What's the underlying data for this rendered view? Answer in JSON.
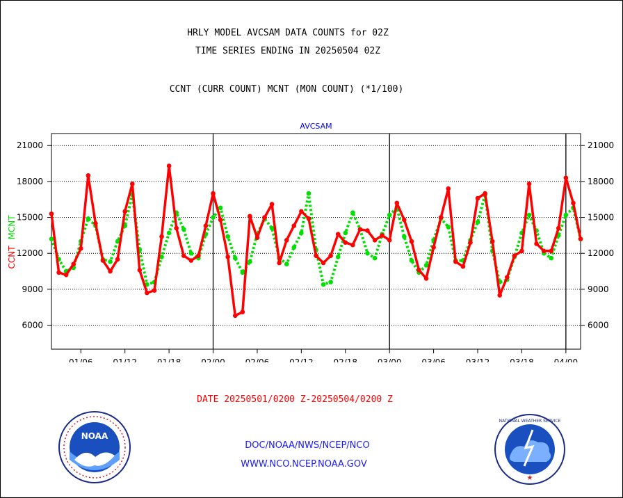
{
  "header": {
    "title_line1": "HRLY MODEL AVCSAM DATA COUNTS for 02Z",
    "title_line2": "TIME SERIES ENDING IN 20250504 02Z",
    "subtitle": "CCNT (CURR COUNT) MCNT (MON COUNT) (*1/100)"
  },
  "footer": {
    "date_range": "DATE 20250501/0200 Z-20250504/0200 Z",
    "link1": "DOC/NOAA/NWS/NCEP/NCO",
    "link2": "WWW.NCO.NCEP.NOAA.GOV"
  },
  "logos": {
    "noaa_text": "NOAA",
    "nws_text": "NATIONAL WEATHER SERVICE"
  },
  "chart_data": {
    "type": "line",
    "title": "AVCSAM",
    "ylabel_left_1": "CCNT",
    "ylabel_left_2": "MCNT",
    "ylim": [
      4000,
      22000
    ],
    "yticks": [
      6000,
      9000,
      12000,
      15000,
      18000,
      21000
    ],
    "ytick_labels": [
      "6000",
      "9000",
      "12000",
      "15000",
      "18000",
      "21000"
    ],
    "grid": true,
    "x_range": [
      0,
      72
    ],
    "xticks": [
      {
        "x": 4,
        "label": "01/06"
      },
      {
        "x": 10,
        "label": "01/12"
      },
      {
        "x": 16,
        "label": "01/18"
      },
      {
        "x": 22,
        "label": "02/00"
      },
      {
        "x": 28,
        "label": "02/06"
      },
      {
        "x": 34,
        "label": "02/12"
      },
      {
        "x": 40,
        "label": "02/18"
      },
      {
        "x": 46,
        "label": "03/00"
      },
      {
        "x": 52,
        "label": "03/06"
      },
      {
        "x": 58,
        "label": "03/12"
      },
      {
        "x": 64,
        "label": "03/18"
      },
      {
        "x": 70,
        "label": "04/00"
      }
    ],
    "day_boundaries": [
      22,
      46,
      70
    ],
    "colors": {
      "ccnt": "#ff0000",
      "mcnt": "#00e000",
      "title": "#0000ff"
    },
    "series": [
      {
        "name": "CCNT",
        "style": "solid",
        "values": [
          15300,
          10400,
          10200,
          11100,
          12400,
          18500,
          14500,
          11400,
          10500,
          11500,
          15500,
          17800,
          10600,
          8700,
          8900,
          13400,
          19300,
          14100,
          11800,
          11400,
          11800,
          14300,
          17000,
          14800,
          11700,
          6800,
          7100,
          15100,
          13300,
          15000,
          16100,
          11200,
          13100,
          14300,
          15500,
          14900,
          11800,
          11200,
          11800,
          13600,
          12900,
          12700,
          14000,
          13900,
          13100,
          13500,
          13100,
          16200,
          14800,
          13000,
          10600,
          9900,
          12500,
          15000,
          17400,
          11300,
          10900,
          12900,
          16600,
          17000,
          13000,
          8500,
          10000,
          11800,
          12200,
          17800,
          12800,
          12200,
          12200,
          14100,
          18300,
          16200,
          13200
        ]
      },
      {
        "name": "MCNT",
        "style": "dotted",
        "values": [
          13200,
          11500,
          10500,
          10800,
          13000,
          14900,
          14300,
          11500,
          11300,
          13000,
          14300,
          16900,
          12300,
          9400,
          9600,
          11700,
          13700,
          15400,
          14000,
          12000,
          11600,
          13600,
          15000,
          15800,
          13400,
          11600,
          10400,
          11300,
          13600,
          14900,
          14100,
          11600,
          11100,
          12500,
          13700,
          17000,
          12300,
          9400,
          9600,
          11700,
          13700,
          15400,
          14000,
          12000,
          11600,
          13600,
          15200,
          15800,
          13400,
          11400,
          10400,
          11000,
          13100,
          14900,
          14200,
          11400,
          11400,
          13100,
          14600,
          16900,
          12200,
          9600,
          9800,
          11700,
          13700,
          15200,
          13900,
          12000,
          11600,
          13500,
          15200,
          15800,
          13200
        ]
      }
    ]
  }
}
